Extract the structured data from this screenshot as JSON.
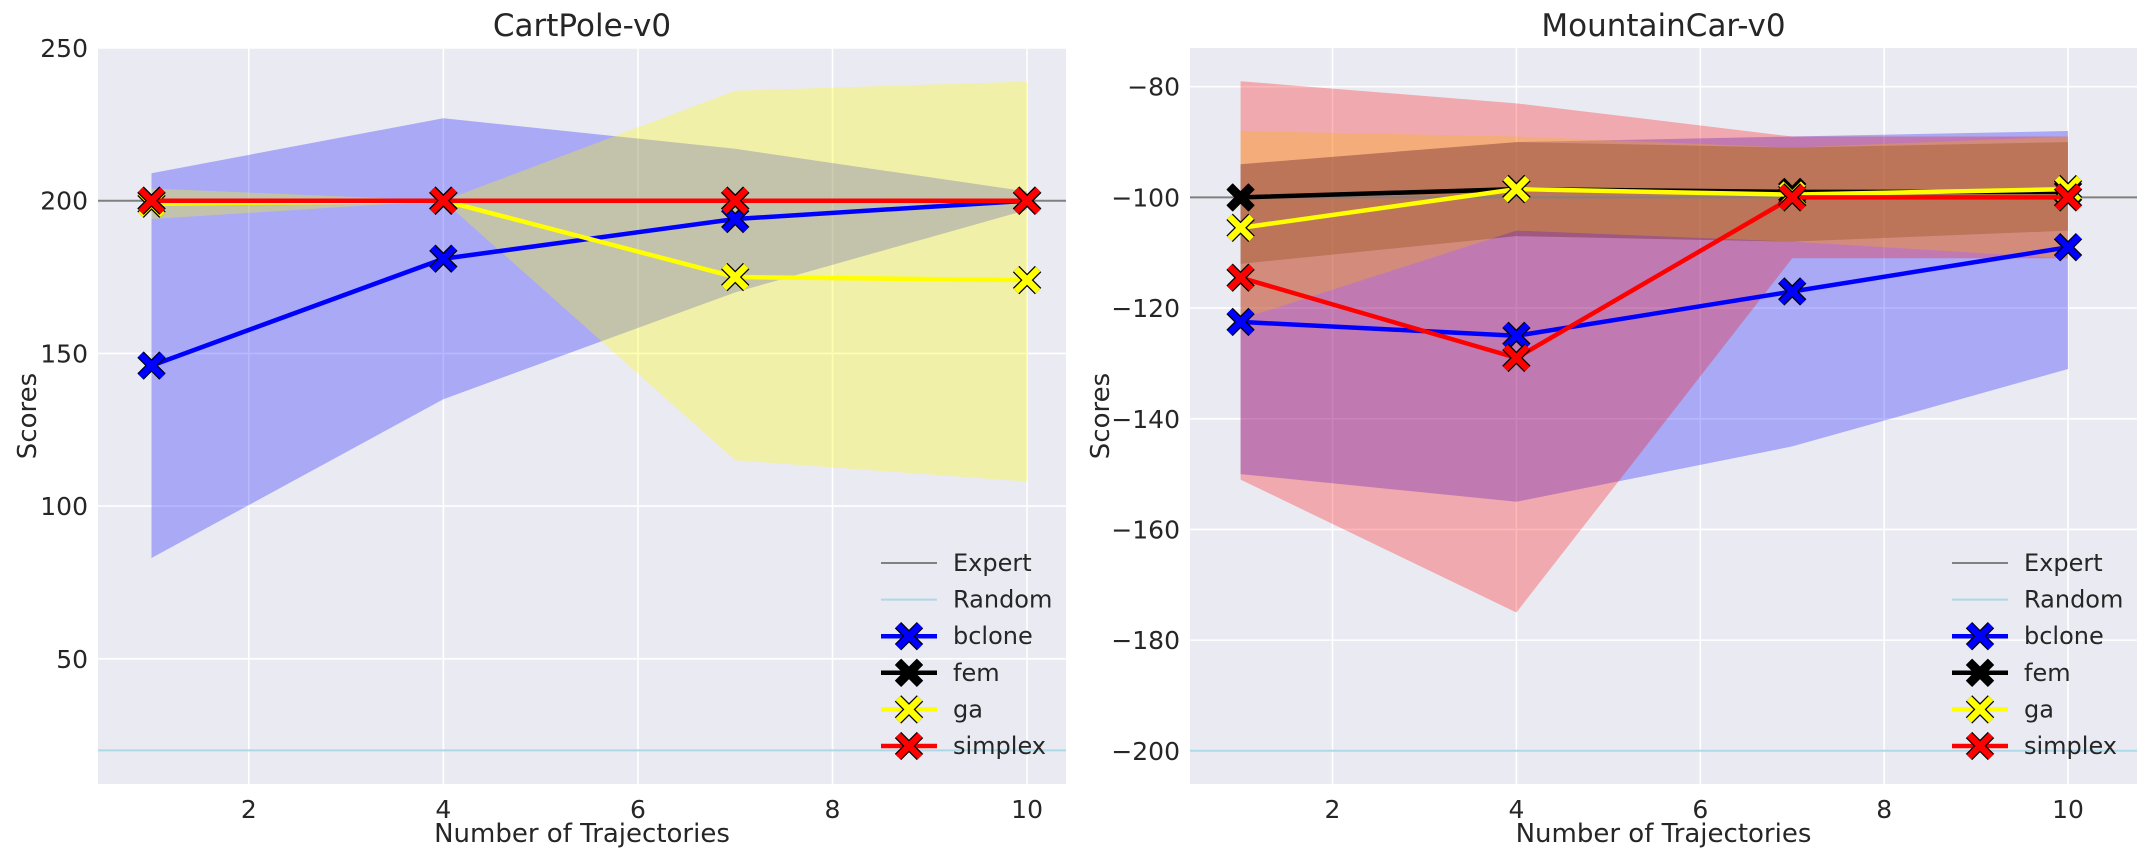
{
  "chart_data": [
    {
      "type": "line",
      "title": "CartPole-v0",
      "xlabel": "Number of Trajectories",
      "ylabel": "Scores",
      "xlim": [
        0.45,
        10.4
      ],
      "ylim": [
        9,
        250
      ],
      "xticks": [
        2,
        4,
        6,
        8,
        10
      ],
      "yticks": [
        50,
        100,
        150,
        200,
        250
      ],
      "grid": true,
      "legend_position": "lower-right",
      "reference_lines": [
        {
          "name": "Expert",
          "y": 200,
          "color": "#808080"
        },
        {
          "name": "Random",
          "y": 20,
          "color": "#add8e6"
        }
      ],
      "series": [
        {
          "name": "bclone",
          "color": "#0000ff",
          "x": [
            1,
            4,
            7,
            10
          ],
          "y": [
            146,
            181,
            194,
            200
          ],
          "band_lower": [
            83,
            135,
            170,
            197
          ],
          "band_upper": [
            209,
            227,
            217,
            203
          ]
        },
        {
          "name": "fem",
          "color": "#000000",
          "x": [
            1,
            4,
            7,
            10
          ],
          "y": [
            200,
            200,
            200,
            200
          ],
          "band_lower": [
            200,
            200,
            200,
            200
          ],
          "band_upper": [
            200,
            200,
            200,
            200
          ]
        },
        {
          "name": "ga",
          "color": "#ffff00",
          "x": [
            1,
            4,
            7,
            10
          ],
          "y": [
            199,
            200,
            175,
            174
          ],
          "band_lower": [
            194,
            200,
            115,
            108
          ],
          "band_upper": [
            204,
            200,
            236,
            239
          ]
        },
        {
          "name": "simplex",
          "color": "#ff0000",
          "x": [
            1,
            4,
            7,
            10
          ],
          "y": [
            200,
            200,
            200,
            200
          ],
          "band_lower": [
            200,
            200,
            200,
            200
          ],
          "band_upper": [
            200,
            200,
            200,
            200
          ]
        }
      ]
    },
    {
      "type": "line",
      "title": "MountainCar-v0",
      "xlabel": "Number of Trajectories",
      "ylabel": "Scores",
      "xlim": [
        0.45,
        10.75
      ],
      "ylim": [
        -206,
        -73
      ],
      "xticks": [
        2,
        4,
        6,
        8,
        10
      ],
      "yticks": [
        -80,
        -100,
        -120,
        -140,
        -160,
        -180,
        -200
      ],
      "grid": true,
      "legend_position": "lower-right",
      "reference_lines": [
        {
          "name": "Expert",
          "y": -100,
          "color": "#808080"
        },
        {
          "name": "Random",
          "y": -200,
          "color": "#add8e6"
        }
      ],
      "series": [
        {
          "name": "bclone",
          "color": "#0000ff",
          "x": [
            1,
            4,
            7,
            10
          ],
          "y": [
            -122.5,
            -125,
            -117,
            -109
          ],
          "band_lower": [
            -150,
            -155,
            -145,
            -131
          ],
          "band_upper": [
            -94,
            -90,
            -89,
            -88
          ]
        },
        {
          "name": "fem",
          "color": "#000000",
          "x": [
            1,
            4,
            7,
            10
          ],
          "y": [
            -100,
            -98.5,
            -99,
            -99
          ],
          "band_lower": [
            -112,
            -107,
            -108,
            -106
          ],
          "band_upper": [
            -94,
            -90,
            -91,
            -90
          ]
        },
        {
          "name": "ga",
          "color": "#ffff00",
          "x": [
            1,
            4,
            7,
            10
          ],
          "y": [
            -105.5,
            -98.5,
            -99.5,
            -98.5
          ],
          "band_lower": [
            -122,
            -106,
            -108,
            -111
          ],
          "band_upper": [
            -88,
            -89,
            -91,
            -89
          ]
        },
        {
          "name": "simplex",
          "color": "#ff0000",
          "x": [
            1,
            4,
            7,
            10
          ],
          "y": [
            -114.5,
            -129,
            -100,
            -100
          ],
          "band_lower": [
            -151,
            -175,
            -111,
            -111
          ],
          "band_upper": [
            -79,
            -83,
            -89,
            -89
          ]
        }
      ]
    }
  ]
}
